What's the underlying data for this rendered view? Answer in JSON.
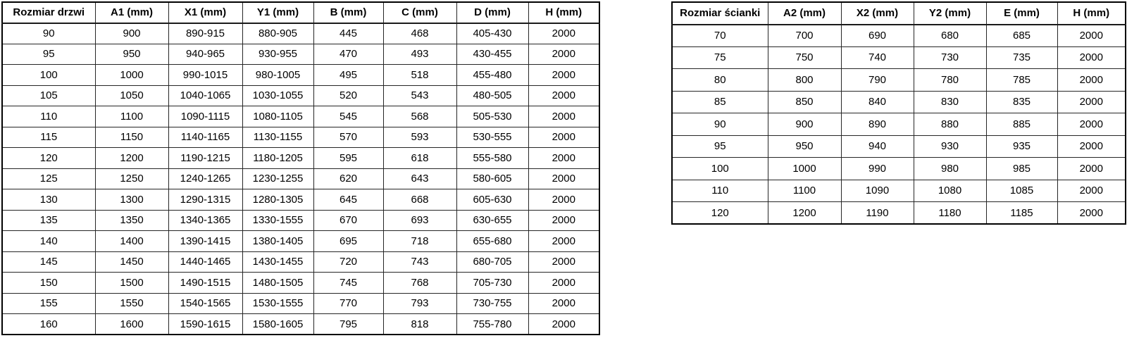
{
  "colors": {
    "background": "#ffffff",
    "border": "#000000",
    "text": "#000000"
  },
  "tables": [
    {
      "name": "door-size-table",
      "headers": [
        "Rozmiar drzwi",
        "A1 (mm)",
        "X1 (mm)",
        "Y1 (mm)",
        "B (mm)",
        "C (mm)",
        "D (mm)",
        "H (mm)"
      ],
      "rows": [
        [
          "90",
          "900",
          "890-915",
          "880-905",
          "445",
          "468",
          "405-430",
          "2000"
        ],
        [
          "95",
          "950",
          "940-965",
          "930-955",
          "470",
          "493",
          "430-455",
          "2000"
        ],
        [
          "100",
          "1000",
          "990-1015",
          "980-1005",
          "495",
          "518",
          "455-480",
          "2000"
        ],
        [
          "105",
          "1050",
          "1040-1065",
          "1030-1055",
          "520",
          "543",
          "480-505",
          "2000"
        ],
        [
          "110",
          "1100",
          "1090-1115",
          "1080-1105",
          "545",
          "568",
          "505-530",
          "2000"
        ],
        [
          "115",
          "1150",
          "1140-1165",
          "1130-1155",
          "570",
          "593",
          "530-555",
          "2000"
        ],
        [
          "120",
          "1200",
          "1190-1215",
          "1180-1205",
          "595",
          "618",
          "555-580",
          "2000"
        ],
        [
          "125",
          "1250",
          "1240-1265",
          "1230-1255",
          "620",
          "643",
          "580-605",
          "2000"
        ],
        [
          "130",
          "1300",
          "1290-1315",
          "1280-1305",
          "645",
          "668",
          "605-630",
          "2000"
        ],
        [
          "135",
          "1350",
          "1340-1365",
          "1330-1555",
          "670",
          "693",
          "630-655",
          "2000"
        ],
        [
          "140",
          "1400",
          "1390-1415",
          "1380-1405",
          "695",
          "718",
          "655-680",
          "2000"
        ],
        [
          "145",
          "1450",
          "1440-1465",
          "1430-1455",
          "720",
          "743",
          "680-705",
          "2000"
        ],
        [
          "150",
          "1500",
          "1490-1515",
          "1480-1505",
          "745",
          "768",
          "705-730",
          "2000"
        ],
        [
          "155",
          "1550",
          "1540-1565",
          "1530-1555",
          "770",
          "793",
          "730-755",
          "2000"
        ],
        [
          "160",
          "1600",
          "1590-1615",
          "1580-1605",
          "795",
          "818",
          "755-780",
          "2000"
        ]
      ]
    },
    {
      "name": "wall-size-table",
      "headers": [
        "Rozmiar ścianki",
        "A2 (mm)",
        "X2 (mm)",
        "Y2 (mm)",
        "E (mm)",
        "H (mm)"
      ],
      "rows": [
        [
          "70",
          "700",
          "690",
          "680",
          "685",
          "2000"
        ],
        [
          "75",
          "750",
          "740",
          "730",
          "735",
          "2000"
        ],
        [
          "80",
          "800",
          "790",
          "780",
          "785",
          "2000"
        ],
        [
          "85",
          "850",
          "840",
          "830",
          "835",
          "2000"
        ],
        [
          "90",
          "900",
          "890",
          "880",
          "885",
          "2000"
        ],
        [
          "95",
          "950",
          "940",
          "930",
          "935",
          "2000"
        ],
        [
          "100",
          "1000",
          "990",
          "980",
          "985",
          "2000"
        ],
        [
          "110",
          "1100",
          "1090",
          "1080",
          "1085",
          "2000"
        ],
        [
          "120",
          "1200",
          "1190",
          "1180",
          "1185",
          "2000"
        ]
      ]
    }
  ]
}
